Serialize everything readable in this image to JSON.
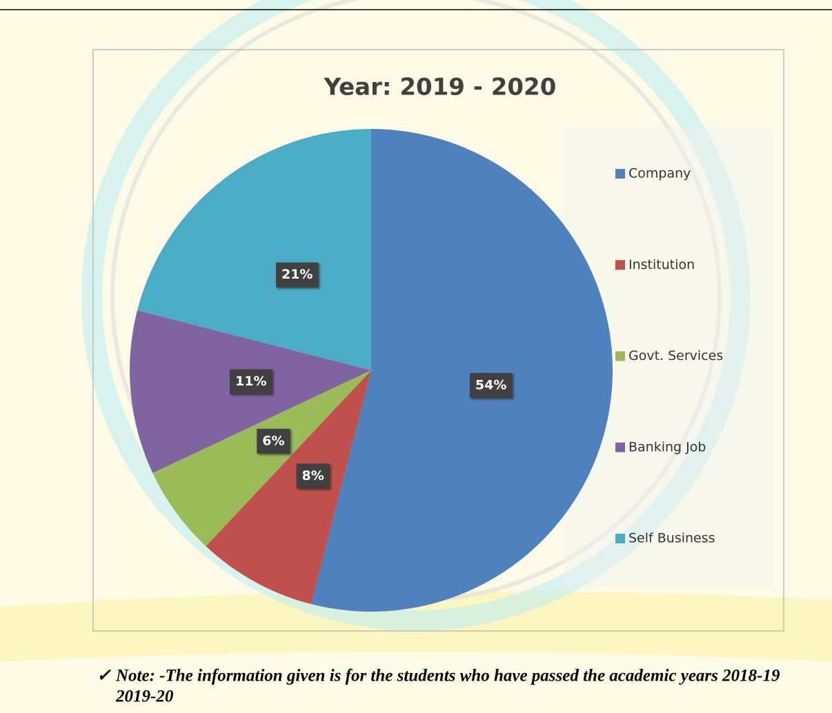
{
  "chart_data": {
    "type": "pie",
    "title": "Year: 2019 - 2020",
    "categories": [
      "Company",
      "Institution",
      "Govt. Services",
      "Banking Job",
      "Self Business"
    ],
    "values": [
      54,
      8,
      6,
      11,
      21
    ],
    "value_labels": [
      "54%",
      "8%",
      "6%",
      "11%",
      "21%"
    ],
    "colors": [
      "#4f81bd",
      "#c0504d",
      "#9bbb59",
      "#8064a2",
      "#4bacc6"
    ],
    "legend": "right"
  },
  "note": {
    "bullet": "✓",
    "lines": [
      "Note: -The information given is for the students who have passed the academic years 2018-19",
      "2019-20"
    ]
  }
}
